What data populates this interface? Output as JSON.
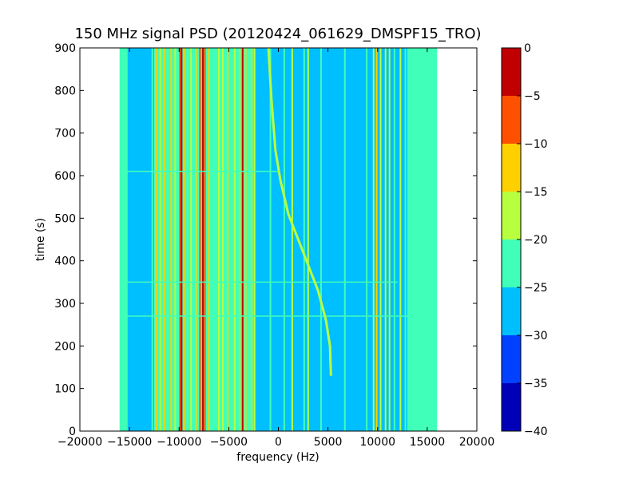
{
  "chart_data": {
    "type": "heatmap",
    "title": "150 MHz signal PSD (20120424_061629_DMSPF15_TRO)",
    "xlabel": "frequency (Hz)",
    "ylabel": "time (s)",
    "xlim": [
      -20000,
      20000
    ],
    "ylim": [
      0,
      900
    ],
    "x_ticks": [
      -20000,
      -15000,
      -10000,
      -5000,
      0,
      5000,
      10000,
      15000,
      20000
    ],
    "x_tick_labels": [
      "−20000",
      "−15000",
      "−10000",
      "−5000",
      "0",
      "5000",
      "10000",
      "15000",
      "20000"
    ],
    "y_ticks": [
      0,
      100,
      200,
      300,
      400,
      500,
      600,
      700,
      800,
      900
    ],
    "y_tick_labels": [
      "0",
      "100",
      "200",
      "300",
      "400",
      "500",
      "600",
      "700",
      "800",
      "900"
    ],
    "data_extent_x": [
      -16000,
      16000
    ],
    "data_extent_y": [
      0,
      900
    ],
    "colorbar": {
      "levels": [
        -40,
        -35,
        -30,
        -25,
        -20,
        -15,
        -10,
        -5,
        0
      ],
      "tick_labels": [
        "−40",
        "−35",
        "−30",
        "−25",
        "−20",
        "−15",
        "−10",
        "−5",
        "0"
      ],
      "colors": [
        "#0000b8",
        "#0040ff",
        "#00bfff",
        "#40ffb8",
        "#b8ff40",
        "#ffd000",
        "#ff5000",
        "#c00000"
      ]
    },
    "background_bands": [
      {
        "x": [
          -16000,
          -15200
        ],
        "level": -22
      },
      {
        "x": [
          -15200,
          -12500
        ],
        "level": -27
      },
      {
        "x": [
          -12500,
          -2500
        ],
        "level": -24
      },
      {
        "x": [
          -2500,
          9500
        ],
        "level": -27
      },
      {
        "x": [
          9500,
          13000
        ],
        "level": -26
      },
      {
        "x": [
          13000,
          13600
        ],
        "level": -24
      },
      {
        "x": [
          13600,
          16000
        ],
        "level": -22
      }
    ],
    "vertical_lines": [
      {
        "x": -12700,
        "level": -22
      },
      {
        "x": -12300,
        "level": -15
      },
      {
        "x": -11900,
        "level": -18
      },
      {
        "x": -11500,
        "level": -12
      },
      {
        "x": -11100,
        "level": -22
      },
      {
        "x": -10800,
        "level": -15
      },
      {
        "x": -10400,
        "level": -18
      },
      {
        "x": -9900,
        "level": -10
      },
      {
        "x": -9750,
        "level": -3
      },
      {
        "x": -9500,
        "level": -12
      },
      {
        "x": -8800,
        "level": -20
      },
      {
        "x": -8300,
        "level": -15
      },
      {
        "x": -7900,
        "level": -10
      },
      {
        "x": -7600,
        "level": -2
      },
      {
        "x": -7400,
        "level": -10
      },
      {
        "x": -7000,
        "level": -15
      },
      {
        "x": -6500,
        "level": -22
      },
      {
        "x": -6000,
        "level": -18
      },
      {
        "x": -5600,
        "level": -20
      },
      {
        "x": -5100,
        "level": -15
      },
      {
        "x": -4800,
        "level": -22
      },
      {
        "x": -4400,
        "level": -18
      },
      {
        "x": -3900,
        "level": -12
      },
      {
        "x": -3600,
        "level": -5
      },
      {
        "x": -3300,
        "level": -15
      },
      {
        "x": -2700,
        "level": -12
      },
      {
        "x": -2400,
        "level": -18
      },
      {
        "x": -800,
        "level": -22
      },
      {
        "x": 600,
        "level": -22
      },
      {
        "x": 1400,
        "level": -20
      },
      {
        "x": 2600,
        "level": -22
      },
      {
        "x": 3000,
        "level": -20
      },
      {
        "x": 4300,
        "level": -24
      },
      {
        "x": 6700,
        "level": -24
      },
      {
        "x": 8900,
        "level": -22
      },
      {
        "x": 9600,
        "level": -18
      },
      {
        "x": 9900,
        "level": -15
      },
      {
        "x": 10300,
        "level": -18
      },
      {
        "x": 10800,
        "level": -20
      },
      {
        "x": 11200,
        "level": -17
      },
      {
        "x": 11700,
        "level": -22
      },
      {
        "x": 12300,
        "level": -20
      },
      {
        "x": 12800,
        "level": -23
      }
    ],
    "doppler_trace": {
      "level": -16,
      "points": [
        [
          -1000,
          900
        ],
        [
          -700,
          780
        ],
        [
          -300,
          660
        ],
        [
          200,
          590
        ],
        [
          1000,
          510
        ],
        [
          2000,
          450
        ],
        [
          3000,
          390
        ],
        [
          4000,
          330
        ],
        [
          4800,
          260
        ],
        [
          5200,
          200
        ],
        [
          5300,
          130
        ]
      ]
    },
    "horizontal_lines": [
      {
        "y": 270,
        "x": [
          -16000,
          16000
        ],
        "level": -22
      },
      {
        "y": 350,
        "x": [
          -16000,
          12000
        ],
        "level": -22
      },
      {
        "y": 610,
        "x": [
          -16000,
          0
        ],
        "level": -23
      }
    ]
  }
}
